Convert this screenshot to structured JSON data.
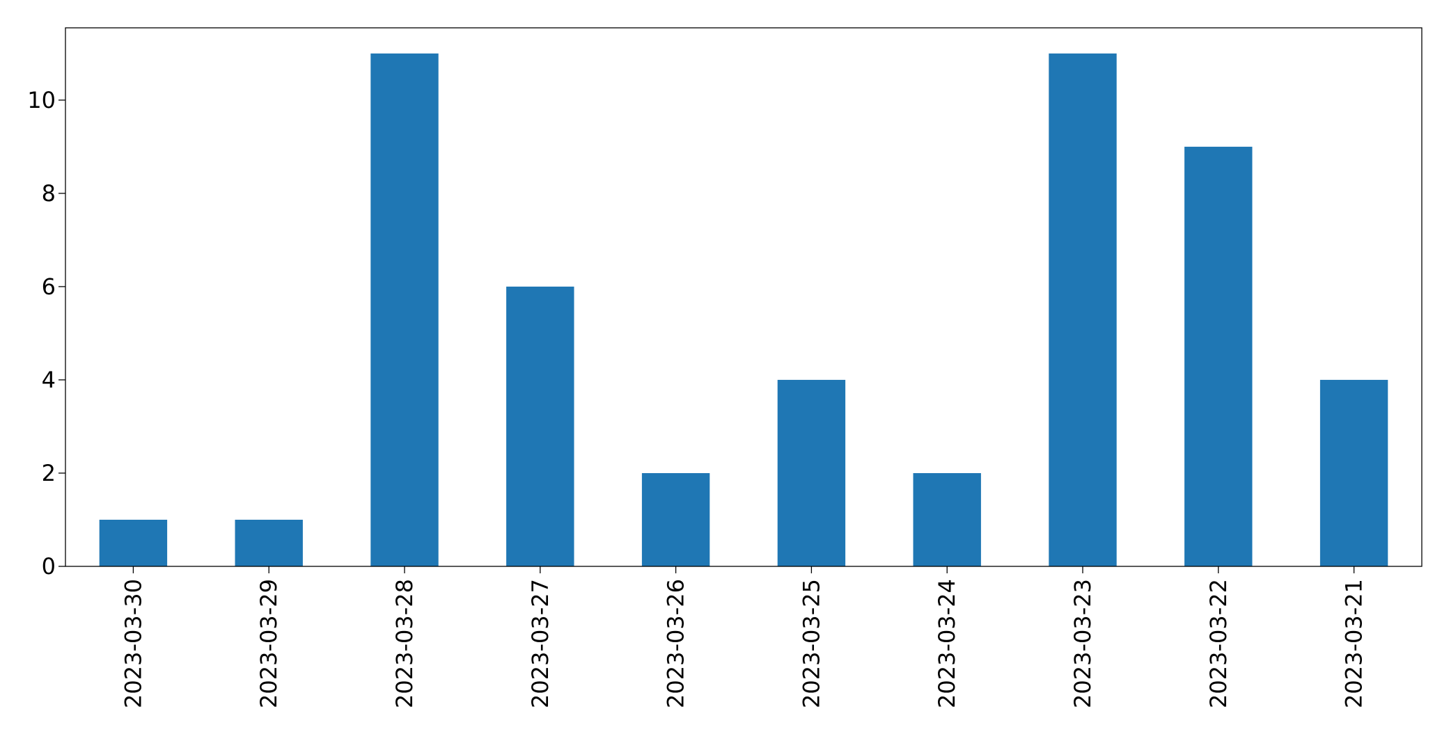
{
  "chart_data": {
    "type": "bar",
    "title": "",
    "xlabel": "",
    "ylabel": "",
    "categories": [
      "2023-03-30",
      "2023-03-29",
      "2023-03-28",
      "2023-03-27",
      "2023-03-26",
      "2023-03-25",
      "2023-03-24",
      "2023-03-23",
      "2023-03-22",
      "2023-03-21"
    ],
    "values": [
      1,
      1,
      11,
      6,
      2,
      4,
      2,
      11,
      9,
      4
    ],
    "ylim": [
      0,
      11.55
    ],
    "yticks": [
      0,
      2,
      4,
      6,
      8,
      10
    ],
    "grid": false,
    "legend": "none",
    "bar_color": "#1f77b4"
  }
}
